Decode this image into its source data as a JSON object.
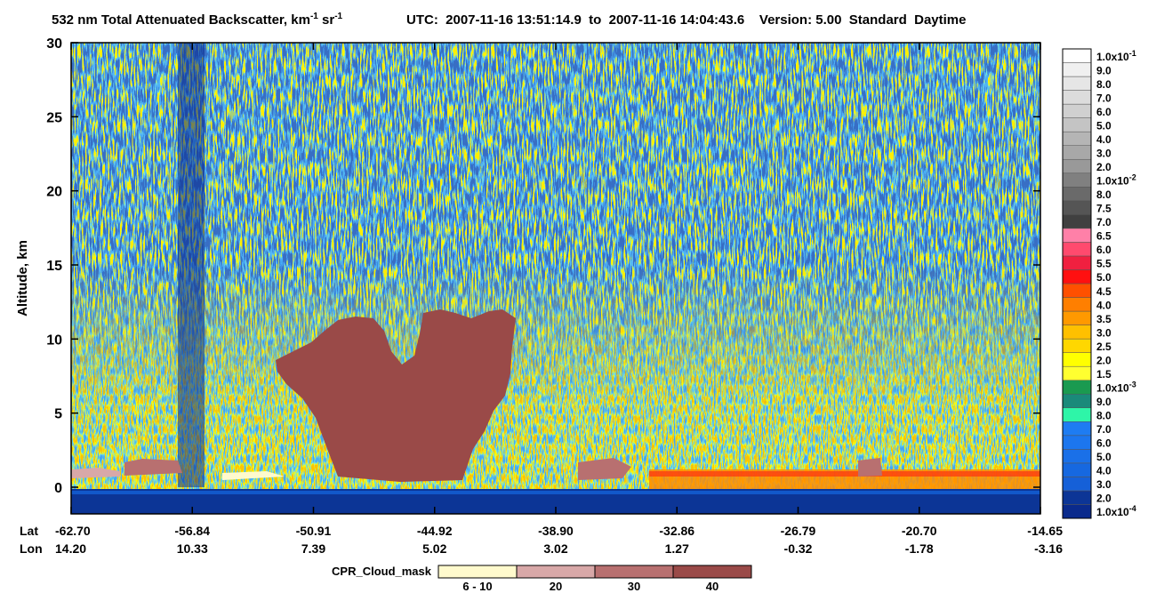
{
  "chart_data": {
    "type": "curtain",
    "title": {
      "text1": "532 nm Total Attenuated Backscatter, km",
      "sup1": "-1",
      "text2": " sr",
      "sup2": "-1",
      "text3": "UTC:  2007-11-16 13:51:14.9  to  2007-11-16 14:04:43.6    Version: 5.00  Standard  Daytime"
    },
    "y_label": "Altitude, km",
    "ylim": [
      -1.8,
      30
    ],
    "yticks": [
      0,
      5,
      10,
      15,
      20,
      25,
      30
    ],
    "lat_title": "Lat",
    "lon_title": "Lon",
    "lat_labels": [
      "-62.70",
      "-56.84",
      "-50.91",
      "-44.92",
      "-38.90",
      "-32.86",
      "-26.79",
      "-20.70",
      "-14.65"
    ],
    "lon_labels": [
      "14.20",
      "10.33",
      "7.39",
      "5.02",
      "3.02",
      "1.27",
      "-0.32",
      "-1.78",
      "-3.16"
    ],
    "colorbar": {
      "labels": [
        {
          "text": "1.0x10",
          "sup": "-4"
        },
        "2.0",
        "3.0",
        "4.0",
        "5.0",
        "6.0",
        "7.0",
        "8.0",
        "9.0",
        {
          "text": "1.0x10",
          "sup": "-3"
        },
        "1.5",
        "2.0",
        "2.5",
        "3.0",
        "3.5",
        "4.0",
        "4.5",
        "5.0",
        "5.5",
        "6.0",
        "6.5",
        "7.0",
        "7.5",
        "8.0",
        {
          "text": "1.0x10",
          "sup": "-2"
        },
        "2.0",
        "3.0",
        "4.0",
        "5.0",
        "6.0",
        "7.0",
        "8.0",
        "9.0",
        {
          "text": "1.0x10",
          "sup": "-1"
        }
      ],
      "colors": [
        "#0a2a8c",
        "#0c3596",
        "#1560d8",
        "#1668e0",
        "#1a70e8",
        "#1c76ee",
        "#1e7cf2",
        "#2ef5a8",
        "#1a8a7a",
        "#1a9a50",
        "#ffff30",
        "#ffff00",
        "#ffd700",
        "#ffc000",
        "#ff9900",
        "#ff7f00",
        "#ff5000",
        "#ff1010",
        "#f02040",
        "#ff4a6e",
        "#ff80a8",
        "#404040",
        "#555555",
        "#6a6a6a",
        "#808080",
        "#999999",
        "#a8a8a8",
        "#b5b5b5",
        "#c4c4c4",
        "#d0d0d0",
        "#dcdcdc",
        "#e6e6e6",
        "#f0f0f0",
        "#ffffff"
      ]
    },
    "cloud_mask": {
      "title": "CPR_Cloud_mask",
      "labels": [
        "6 - 10",
        "20",
        "30",
        "40"
      ],
      "colors": [
        "#fffacd",
        "#d8a8a8",
        "#b87070",
        "#9a4a48"
      ]
    }
  }
}
